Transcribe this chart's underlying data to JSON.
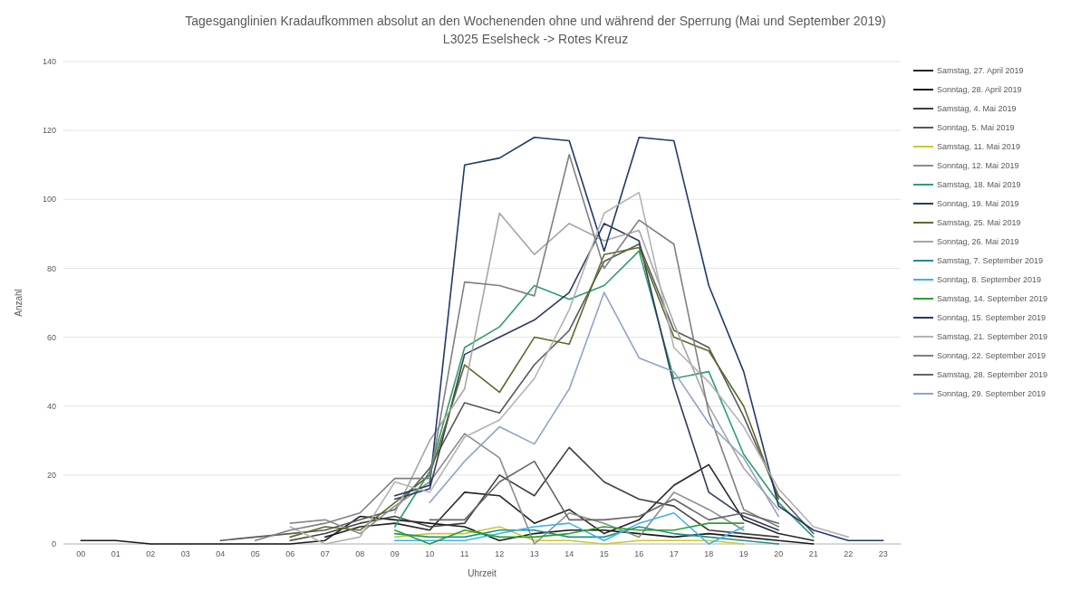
{
  "chart_data": {
    "type": "line",
    "title": "Tagesganglinien Kradaufkommen absolut an den Wochenenden ohne und während der Sperrung (Mai und September 2019)",
    "subtitle": "L3025 Eselsheck -> Rotes Kreuz",
    "xlabel": "Uhrzeit",
    "ylabel": "Anzahl",
    "categories": [
      "00",
      "01",
      "02",
      "03",
      "04",
      "05",
      "06",
      "07",
      "08",
      "09",
      "10",
      "11",
      "12",
      "13",
      "14",
      "15",
      "16",
      "17",
      "18",
      "19",
      "20",
      "21",
      "22",
      "23"
    ],
    "ylim": [
      0,
      140
    ],
    "yticks": [
      0,
      20,
      40,
      60,
      80,
      100,
      120,
      140
    ],
    "grid": "y",
    "legend": "top right",
    "line_style": "solid",
    "marker": "none",
    "series": [
      {
        "name": "Samstag, 27. April 2019",
        "color": "#262626",
        "values": [
          null,
          null,
          null,
          null,
          null,
          null,
          null,
          2,
          5,
          6,
          4,
          15,
          14,
          6,
          10,
          3,
          7,
          17,
          23,
          7,
          3,
          1,
          null,
          null
        ]
      },
      {
        "name": "Sonntag, 28. April 2019",
        "color": "#1a1a1a",
        "values": [
          1,
          1,
          0,
          0,
          0,
          0,
          0,
          1,
          8,
          7,
          6,
          5,
          1,
          3,
          4,
          4,
          3,
          2,
          3,
          2,
          1,
          0,
          null,
          null
        ]
      },
      {
        "name": "Samstag, 4. Mai 2019",
        "color": "#404040",
        "values": [
          null,
          null,
          null,
          null,
          null,
          null,
          1,
          3,
          6,
          8,
          5,
          6,
          20,
          14,
          28,
          18,
          13,
          11,
          4,
          3,
          2,
          null,
          null,
          null
        ]
      },
      {
        "name": "Sonntag, 5. Mai 2019",
        "color": "#595959",
        "values": [
          null,
          null,
          null,
          null,
          1,
          2,
          3,
          4,
          7,
          10,
          22,
          41,
          38,
          52,
          62,
          82,
          87,
          62,
          57,
          37,
          14,
          3,
          null,
          null
        ]
      },
      {
        "name": "Samstag, 11. Mai 2019",
        "color": "#c9c930",
        "values": [
          null,
          null,
          null,
          null,
          null,
          null,
          null,
          null,
          null,
          2,
          3,
          3,
          5,
          1,
          1,
          0,
          1,
          1,
          1,
          0,
          null,
          null,
          null,
          null
        ]
      },
      {
        "name": "Sonntag, 12. Mai 2019",
        "color": "#8c8c8c",
        "values": [
          null,
          null,
          null,
          null,
          null,
          null,
          6,
          7,
          3,
          11,
          18,
          32,
          25,
          0,
          9,
          6,
          2,
          15,
          10,
          4,
          null,
          null,
          null,
          null
        ]
      },
      {
        "name": "Samstag, 18. Mai 2019",
        "color": "#2e9e6e",
        "values": [
          null,
          null,
          null,
          null,
          null,
          null,
          null,
          null,
          null,
          5,
          21,
          57,
          63,
          75,
          71,
          75,
          85,
          48,
          50,
          26,
          12,
          2,
          null,
          null
        ]
      },
      {
        "name": "Sonntag, 19. Mai 2019",
        "color": "#2f3b5c",
        "values": [
          null,
          null,
          null,
          null,
          null,
          null,
          null,
          null,
          null,
          13,
          16,
          55,
          60,
          65,
          73,
          93,
          88,
          46,
          15,
          8,
          4,
          null,
          null,
          null
        ]
      },
      {
        "name": "Samstag, 25. Mai 2019",
        "color": "#5a6b2a",
        "values": [
          null,
          null,
          null,
          null,
          null,
          null,
          2,
          5,
          4,
          12,
          20,
          52,
          44,
          60,
          58,
          84,
          86,
          60,
          56,
          40,
          13,
          null,
          null,
          null
        ]
      },
      {
        "name": "Sonntag, 26. Mai 2019",
        "color": "#a6a6a6",
        "values": [
          null,
          null,
          null,
          null,
          null,
          null,
          null,
          null,
          null,
          9,
          30,
          45,
          96,
          84,
          93,
          88,
          91,
          64,
          40,
          22,
          10,
          null,
          null,
          null
        ]
      },
      {
        "name": "Samstag, 7. September 2019",
        "color": "#1f8f8f",
        "values": [
          null,
          null,
          null,
          null,
          null,
          null,
          null,
          null,
          null,
          3,
          2,
          2,
          4,
          4,
          2,
          2,
          5,
          3,
          2,
          1,
          0,
          null,
          null,
          null
        ]
      },
      {
        "name": "Sonntag, 8. September 2019",
        "color": "#3cb4e6",
        "values": [
          null,
          null,
          null,
          null,
          null,
          null,
          null,
          null,
          null,
          1,
          1,
          1,
          3,
          5,
          6,
          1,
          6,
          9,
          0,
          5,
          null,
          null,
          null,
          null
        ]
      },
      {
        "name": "Samstag, 14. September 2019",
        "color": "#2ca02c",
        "values": [
          null,
          null,
          null,
          null,
          null,
          null,
          null,
          null,
          null,
          4,
          0,
          4,
          2,
          2,
          3,
          5,
          4,
          4,
          6,
          6,
          null,
          null,
          null,
          null
        ]
      },
      {
        "name": "Sonntag, 15. September 2019",
        "color": "#1f3a68",
        "values": [
          null,
          null,
          null,
          null,
          null,
          null,
          null,
          null,
          null,
          14,
          17,
          110,
          112,
          118,
          117,
          85,
          118,
          117,
          75,
          50,
          11,
          4,
          1,
          1
        ]
      },
      {
        "name": "Samstag, 21. September 2019",
        "color": "#b3b3b3",
        "values": [
          null,
          null,
          null,
          null,
          null,
          null,
          5,
          0,
          2,
          18,
          15,
          31,
          36,
          48,
          68,
          96,
          102,
          57,
          47,
          34,
          16,
          5,
          2,
          null
        ]
      },
      {
        "name": "Sonntag, 22. September 2019",
        "color": "#808080",
        "values": [
          null,
          null,
          null,
          null,
          null,
          1,
          4,
          6,
          9,
          19,
          19,
          76,
          75,
          72,
          113,
          80,
          94,
          87,
          38,
          10,
          5,
          null,
          null,
          null
        ]
      },
      {
        "name": "Samstag, 28. September 2019",
        "color": "#666666",
        "values": [
          null,
          null,
          null,
          null,
          null,
          null,
          null,
          null,
          null,
          null,
          7,
          7,
          18,
          24,
          7,
          7,
          8,
          13,
          7,
          9,
          6,
          null,
          null,
          null
        ]
      },
      {
        "name": "Sonntag, 29. September 2019",
        "color": "#8fa3c8",
        "values": [
          null,
          null,
          null,
          null,
          null,
          null,
          null,
          null,
          null,
          null,
          12,
          24,
          34,
          29,
          45,
          73,
          54,
          50,
          35,
          25,
          8,
          null,
          null,
          null
        ]
      }
    ]
  }
}
